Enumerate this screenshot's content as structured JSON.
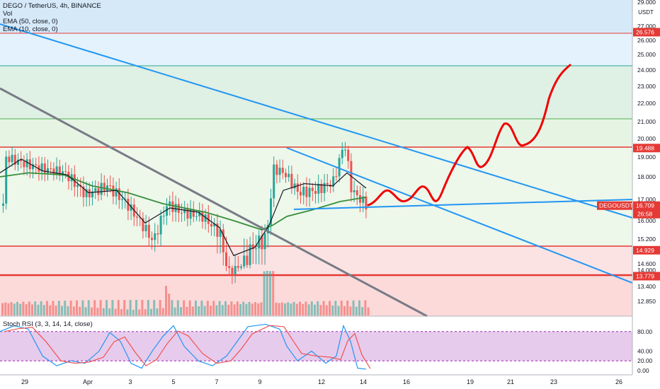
{
  "legend": {
    "title": "DEGO / TetherUS, 4h, BINANCE",
    "vol": "Vol",
    "ema50": "EMA (50, close, 0)",
    "ema10": "EMA (10, close, 0)"
  },
  "rsi_legend": "Stoch RSI (3, 3, 14, 14, close)",
  "price_axis": {
    "unit": "USDT",
    "ticks": [
      "29.000",
      "27.000",
      "26.000",
      "25.000",
      "24.000",
      "23.000",
      "22.000",
      "21.000",
      "20.000",
      "19.000",
      "18.000",
      "17.000",
      "16.000",
      "15.200",
      "14.600",
      "14.000",
      "13.400",
      "12.850"
    ],
    "tick_values": [
      29.0,
      27.0,
      26.0,
      25.0,
      24.0,
      23.0,
      22.0,
      21.0,
      20.0,
      19.0,
      18.0,
      17.0,
      16.0,
      15.2,
      14.6,
      14.0,
      13.4,
      12.85
    ]
  },
  "price_labels": [
    {
      "text": "26.576",
      "value": 26.576,
      "color": "#e53935"
    },
    {
      "text": "19.488",
      "value": 19.488,
      "color": "#e53935"
    },
    {
      "text": "14.929",
      "value": 14.929,
      "color": "#e53935"
    },
    {
      "text": "13.779",
      "value": 13.779,
      "color": "#e53935"
    }
  ],
  "current_price": {
    "symbol": "DEGOUSDT",
    "price": "16.709",
    "countdown": "26:58",
    "color": "#e53935",
    "value": 16.709
  },
  "rsi_axis": {
    "ticks": [
      "80.00",
      "40.00",
      "20.00",
      "0.00"
    ],
    "tick_values": [
      80,
      40,
      20,
      0
    ]
  },
  "time_axis": {
    "labels": [
      "29",
      "Apr",
      "3",
      "5",
      "7",
      "9",
      "12",
      "14",
      "16",
      "19",
      "21",
      "23",
      "26"
    ]
  },
  "colors": {
    "candle_up": "#26a69a",
    "candle_down": "#ef5350",
    "ema50": "#388e3c",
    "ema10": "#131722",
    "trend_blue": "#2196f3",
    "trend_gray": "#787b86",
    "projection": "#f00000",
    "resistance": "#e53935",
    "rsi_k": "#2196f3",
    "rsi_d": "#ef5350",
    "rsi_band": "#e1bee7"
  },
  "chart_data": {
    "type": "candlestick",
    "symbol": "DEGO / TetherUS",
    "interval": "4h",
    "horizontal_levels": [
      26.576,
      24.3,
      21.0,
      19.488,
      14.929,
      13.779
    ],
    "current_price": 16.709,
    "stoch_rsi_range": [
      0,
      100
    ]
  }
}
